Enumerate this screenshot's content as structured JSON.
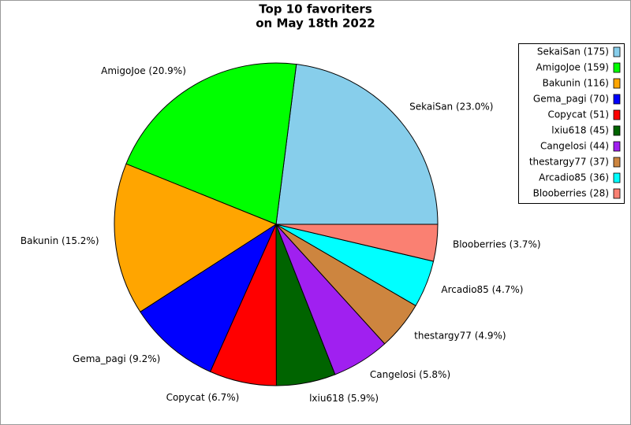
{
  "chart_data": {
    "type": "pie",
    "title": [
      "Top 10 favoriters",
      "on May 18th 2022"
    ],
    "categories": [
      "SekaiSan",
      "AmigoJoe",
      "Bakunin",
      "Gema_pagi",
      "Copycat",
      "lxiu618",
      "Cangelosi",
      "thestargy77",
      "Arcadio85",
      "Blooberries"
    ],
    "values": [
      175,
      159,
      116,
      70,
      51,
      45,
      44,
      37,
      36,
      28
    ],
    "slice_labels": [
      "SekaiSan (23.0%)",
      "AmigoJoe (20.9%)",
      "Bakunin (15.2%)",
      "Gema_pagi (9.2%)",
      "Copycat (6.7%)",
      "lxiu618 (5.9%)",
      "Cangelosi (5.8%)",
      "thestargy77 (4.9%)",
      "Arcadio85 (4.7%)",
      "Blooberries (3.7%)"
    ],
    "legend_labels": [
      "SekaiSan (175)",
      "AmigoJoe (159)",
      "Bakunin (116)",
      "Gema_pagi (70)",
      "Copycat (51)",
      "lxiu618 (45)",
      "Cangelosi (44)",
      "thestargy77 (37)",
      "Arcadio85 (36)",
      "Blooberries (28)"
    ],
    "colors": [
      "#87ceeb",
      "#00ff00",
      "#ffa500",
      "#0000ff",
      "#ff0000",
      "#006400",
      "#a020f0",
      "#cd853f",
      "#00ffff",
      "#fa8072"
    ],
    "legend": "upper right"
  }
}
